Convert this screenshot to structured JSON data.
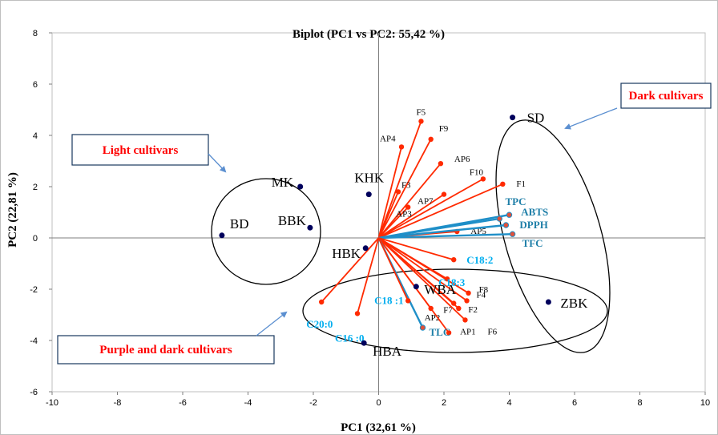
{
  "chart_data": {
    "type": "scatter",
    "title": "Biplot (PC1 vs PC2: 55,42 %)",
    "xlabel": "PC1 (32,61 %)",
    "ylabel": "PC2 (22,81 %)",
    "xlim": [
      -10,
      10
    ],
    "ylim": [
      -6,
      8
    ],
    "x_ticks": [
      "-10",
      "-8",
      "-6",
      "-4",
      "-2",
      "0",
      "2",
      "4",
      "6",
      "8",
      "10"
    ],
    "y_ticks": [
      "-6",
      "-4",
      "-2",
      "0",
      "2",
      "4",
      "6",
      "8"
    ],
    "grid": false,
    "observations": [
      {
        "label": "SD",
        "x": 4.1,
        "y": 4.7
      },
      {
        "label": "MK",
        "x": -2.4,
        "y": 2.0
      },
      {
        "label": "KHK",
        "x": -0.3,
        "y": 1.7
      },
      {
        "label": "BD",
        "x": -4.8,
        "y": 0.1
      },
      {
        "label": "BBK",
        "x": -2.1,
        "y": 0.4
      },
      {
        "label": "HBK",
        "x": -0.4,
        "y": -0.4
      },
      {
        "label": "WBA",
        "x": 1.15,
        "y": -1.9
      },
      {
        "label": "ZBK",
        "x": 5.2,
        "y": -2.5
      },
      {
        "label": "HBA",
        "x": -0.45,
        "y": -4.1
      }
    ],
    "variables": [
      {
        "label": "F5",
        "x": 1.3,
        "y": 4.55,
        "group": "phenolic"
      },
      {
        "label": "F9",
        "x": 1.6,
        "y": 3.85,
        "group": "phenolic"
      },
      {
        "label": "AP4",
        "x": 0.7,
        "y": 3.55,
        "group": "phenolic"
      },
      {
        "label": "AP6",
        "x": 1.9,
        "y": 2.9,
        "group": "phenolic"
      },
      {
        "label": "F10",
        "x": 3.2,
        "y": 2.3,
        "group": "phenolic"
      },
      {
        "label": "F1",
        "x": 3.8,
        "y": 2.1,
        "group": "phenolic"
      },
      {
        "label": "F3",
        "x": 0.6,
        "y": 1.8,
        "group": "phenolic"
      },
      {
        "label": "AP7",
        "x": 2.0,
        "y": 1.7,
        "group": "phenolic"
      },
      {
        "label": "AP3",
        "x": 0.9,
        "y": 1.2,
        "group": "phenolic"
      },
      {
        "label": "AP5",
        "x": 2.4,
        "y": 0.25,
        "group": "phenolic"
      },
      {
        "label": "F8",
        "x": 2.75,
        "y": -2.15,
        "group": "phenolic"
      },
      {
        "label": "F4",
        "x": 2.7,
        "y": -2.45,
        "group": "phenolic"
      },
      {
        "label": "F7",
        "x": 2.3,
        "y": -2.55,
        "group": "phenolic"
      },
      {
        "label": "F2",
        "x": 2.45,
        "y": -2.75,
        "group": "phenolic"
      },
      {
        "label": "F6",
        "x": 2.65,
        "y": -3.2,
        "group": "phenolic"
      },
      {
        "label": "AP2",
        "x": 1.6,
        "y": -2.75,
        "group": "phenolic"
      },
      {
        "label": "AP1",
        "x": 2.15,
        "y": -3.7,
        "group": "phenolic"
      },
      {
        "label": "TPC",
        "x": 4.0,
        "y": 0.9,
        "group": "activity"
      },
      {
        "label": "ABTS",
        "x": 3.7,
        "y": 0.75,
        "group": "activity"
      },
      {
        "label": "DPPH",
        "x": 3.9,
        "y": 0.5,
        "group": "activity"
      },
      {
        "label": "TFC",
        "x": 4.1,
        "y": 0.15,
        "group": "activity"
      },
      {
        "label": "TLC",
        "x": 1.35,
        "y": -3.5,
        "group": "activity"
      },
      {
        "label": "C18:2",
        "x": 2.3,
        "y": -0.85,
        "group": "fatty"
      },
      {
        "label": "C18:3",
        "x": 2.1,
        "y": -1.6,
        "group": "fatty"
      },
      {
        "label": "C18 :1",
        "x": 0.9,
        "y": -2.45,
        "group": "fatty"
      },
      {
        "label": "C20:0",
        "x": -1.75,
        "y": -2.5,
        "group": "fatty"
      },
      {
        "label": "C16 :0",
        "x": -0.65,
        "y": -2.95,
        "group": "fatty"
      }
    ],
    "annotations": [
      "Dark cultivars",
      "Light cultivars",
      "Purple and dark cultivars"
    ],
    "colors": {
      "observation": "#00005c",
      "phenolic": "#ff2a00",
      "activity": "#1f8fc8",
      "activity_label": "#1f7fa8",
      "fatty_label": "#00aeef",
      "callout_text": "#ff0000",
      "callout_border": "#17375e",
      "arrow": "#5b8fd0"
    }
  }
}
